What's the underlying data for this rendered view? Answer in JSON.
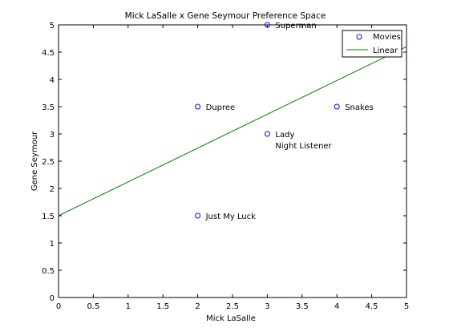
{
  "chart_data": {
    "type": "scatter",
    "title": "Mick LaSalle x Gene Seymour Preference Space",
    "xlabel": "Mick LaSalle",
    "ylabel": "Gene Seymour",
    "xlim": [
      0,
      5
    ],
    "ylim": [
      0,
      5
    ],
    "xticks": [
      "0",
      "0.5",
      "1",
      "1.5",
      "2",
      "2.5",
      "3",
      "3.5",
      "4",
      "4.5",
      "5"
    ],
    "yticks": [
      "0",
      "0.5",
      "1",
      "1.5",
      "2",
      "2.5",
      "3",
      "3.5",
      "4",
      "4.5",
      "5"
    ],
    "grid": false,
    "legend_position": "top-right",
    "colors": {
      "points": "#0000ff",
      "line": "#007f00",
      "axes": "#000000"
    },
    "series": [
      {
        "name": "Movies",
        "kind": "scatter",
        "points": [
          {
            "x": 3,
            "y": 5,
            "label": "Superman"
          },
          {
            "x": 2,
            "y": 3.5,
            "label": "Dupree"
          },
          {
            "x": 4,
            "y": 3.5,
            "label": "Snakes"
          },
          {
            "x": 3,
            "y": 3,
            "label": "Lady Night Listener",
            "label_lines": [
              "Lady",
              "Night Listener"
            ]
          },
          {
            "x": 2,
            "y": 1.5,
            "label": "Just My Luck"
          }
        ]
      },
      {
        "name": "Linear",
        "kind": "line",
        "x": [
          0,
          5
        ],
        "y": [
          1.5,
          4.6
        ]
      }
    ]
  }
}
